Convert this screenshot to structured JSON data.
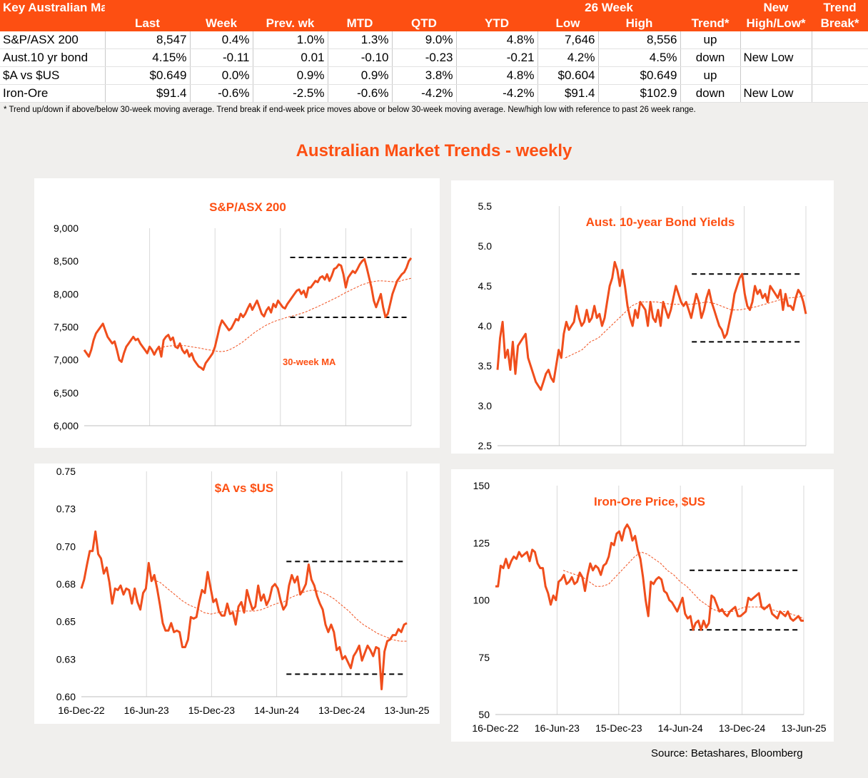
{
  "table": {
    "header_row1": [
      "Key Australian Markets",
      "",
      "",
      "",
      "",
      "",
      "",
      "26 Week",
      "",
      "",
      "New",
      "Trend"
    ],
    "header_row2": [
      "",
      "Last",
      "Week",
      "Prev. wk",
      "MTD",
      "QTD",
      "YTD",
      "Low",
      "High",
      "Trend*",
      "High/Low*",
      "Break*"
    ],
    "rows": [
      [
        "S&P/ASX 200",
        "8,547",
        "0.4%",
        "1.0%",
        "1.3%",
        "9.0%",
        "4.8%",
        "7,646",
        "8,556",
        "up",
        "",
        ""
      ],
      [
        "Aust.10 yr bond",
        "4.15%",
        "-0.11",
        "0.01",
        "-0.10",
        "-0.23",
        "-0.21",
        "4.2%",
        "4.5%",
        "down",
        "New Low",
        ""
      ],
      [
        "$A vs $US",
        "$0.649",
        "0.0%",
        "0.9%",
        "0.9%",
        "3.8%",
        "4.8%",
        "$0.604",
        "$0.649",
        "up",
        "",
        ""
      ],
      [
        "Iron-Ore",
        "$91.4",
        "-0.6%",
        "-2.5%",
        "-0.6%",
        "-4.2%",
        "-4.2%",
        "$91.4",
        "$102.9",
        "down",
        "New Low",
        ""
      ]
    ],
    "footnote": "*  Trend up/down if above/below 30-week moving average. Trend break if end-week price moves above or below 30-week moving average.  New/high low with reference to past 26 week range."
  },
  "main_title": "Australian Market Trends - weekly",
  "source": "Source:  Betashares, Bloomberg",
  "colors": {
    "accent": "#fd4f12",
    "line": "#f04e1c",
    "range": "#000000",
    "grid": "#d9d9d9"
  },
  "chart_data": [
    {
      "type": "line",
      "title": "S&P/ASX 200",
      "annotation": "30-week MA",
      "x_start": "16-Dec-22",
      "x_end": "13-Jun-25",
      "x_tick_labels": [],
      "ylim": [
        6000,
        9000
      ],
      "y_ticks": [
        6000,
        6500,
        7000,
        7500,
        8000,
        8500,
        9000
      ],
      "y_tick_labels": [
        "6,000",
        "6,500",
        "7,000",
        "7,500",
        "8,000",
        "8,500",
        "9,000"
      ],
      "range_high": 8556,
      "range_low": 7646,
      "series": [
        {
          "role": "price",
          "values": [
            7150,
            7100,
            7050,
            7150,
            7300,
            7400,
            7450,
            7500,
            7550,
            7450,
            7350,
            7300,
            7250,
            7280,
            7150,
            7000,
            6970,
            7100,
            7200,
            7250,
            7300,
            7350,
            7300,
            7320,
            7250,
            7200,
            7150,
            7100,
            7200,
            7150,
            7080,
            7150,
            7200,
            7050,
            7300,
            7350,
            7380,
            7300,
            7340,
            7200,
            7180,
            7250,
            7150,
            7100,
            7150,
            7050,
            7100,
            7000,
            6950,
            6900,
            6880,
            6850,
            6950,
            7000,
            7050,
            7100,
            7200,
            7350,
            7500,
            7600,
            7550,
            7500,
            7450,
            7480,
            7550,
            7620,
            7600,
            7700,
            7650,
            7700,
            7780,
            7850,
            7760,
            7830,
            7900,
            7800,
            7700,
            7660,
            7750,
            7800,
            7720,
            7850,
            7800,
            7900,
            7850,
            7800,
            7780,
            7850,
            7900,
            7950,
            8000,
            8050,
            8070,
            8000,
            8050,
            7950,
            8100,
            8100,
            8150,
            8200,
            8180,
            8250,
            8270,
            8220,
            8300,
            8200,
            8280,
            8380,
            8400,
            8450,
            8430,
            8300,
            8100,
            8250,
            8300,
            8350,
            8320,
            8380,
            8450,
            8500,
            8530,
            8400,
            8250,
            8100,
            7900,
            7800,
            7900,
            8000,
            7800,
            7650,
            7700,
            7850,
            8000,
            8100,
            8200,
            8250,
            8300,
            8330,
            8400,
            8500,
            8547
          ]
        },
        {
          "role": "30-week MA",
          "dashed": true,
          "values": [
            7150,
            7175,
            7200,
            7210,
            7215,
            7220,
            7220,
            7215,
            7205,
            7195,
            7185,
            7175,
            7160,
            7150,
            7140,
            7130,
            7125,
            7135,
            7160,
            7190,
            7230,
            7270,
            7320,
            7370,
            7420,
            7460,
            7500,
            7535,
            7565,
            7590,
            7610,
            7630,
            7650,
            7665,
            7680,
            7700,
            7720,
            7745,
            7775,
            7800,
            7830,
            7860,
            7890,
            7920,
            7950,
            7985,
            8020,
            8050,
            8080,
            8110,
            8140,
            8160,
            8180,
            8190,
            8200,
            8200,
            8195,
            8190,
            8185,
            8190,
            8210,
            8225,
            8240
          ]
        }
      ]
    },
    {
      "type": "line",
      "title": "Aust. 10-year Bond Yields",
      "x_start": "16-Dec-22",
      "x_end": "13-Jun-25",
      "x_tick_labels": [],
      "ylim": [
        2.5,
        5.5
      ],
      "y_ticks": [
        2.5,
        3.0,
        3.5,
        4.0,
        4.5,
        5.0,
        5.5
      ],
      "y_tick_labels": [
        "2.5",
        "3.0",
        "3.5",
        "4.0",
        "4.5",
        "5.0",
        "5.5"
      ],
      "range_high": 4.65,
      "range_low": 3.8,
      "series": [
        {
          "role": "price",
          "values": [
            3.45,
            3.85,
            4.05,
            3.6,
            3.7,
            3.45,
            3.8,
            3.4,
            3.75,
            3.8,
            3.85,
            3.9,
            3.6,
            3.5,
            3.4,
            3.3,
            3.25,
            3.2,
            3.3,
            3.4,
            3.45,
            3.35,
            3.3,
            3.5,
            3.7,
            3.6,
            3.9,
            4.05,
            3.95,
            4.0,
            4.05,
            4.25,
            4.1,
            4.0,
            4.05,
            4.2,
            4.05,
            4.1,
            4.25,
            4.1,
            4.15,
            4.0,
            4.1,
            4.3,
            4.5,
            4.6,
            4.8,
            4.7,
            4.5,
            4.7,
            4.5,
            4.25,
            4.1,
            4.0,
            4.2,
            4.1,
            4.3,
            4.25,
            4.2,
            4.0,
            4.3,
            4.1,
            4.05,
            4.2,
            4.0,
            4.3,
            4.2,
            4.1,
            4.2,
            4.35,
            4.5,
            4.4,
            4.3,
            4.25,
            4.3,
            4.2,
            4.1,
            4.25,
            4.4,
            4.3,
            4.1,
            4.2,
            4.35,
            4.45,
            4.3,
            4.2,
            4.1,
            4.0,
            3.95,
            3.85,
            3.9,
            4.05,
            4.2,
            4.4,
            4.5,
            4.6,
            4.65,
            4.4,
            4.25,
            4.2,
            4.3,
            4.5,
            4.4,
            4.45,
            4.35,
            4.4,
            4.3,
            4.5,
            4.45,
            4.4,
            4.35,
            4.45,
            4.2,
            4.4,
            4.25,
            4.25,
            4.2,
            4.35,
            4.45,
            4.4,
            4.3,
            4.15
          ]
        },
        {
          "role": "30-week MA",
          "dashed": true,
          "values": [
            3.6,
            3.65,
            3.7,
            3.8,
            3.85,
            3.95,
            4.05,
            4.15,
            4.25,
            4.3,
            4.3,
            4.3,
            4.28,
            4.27,
            4.27,
            4.27,
            4.28,
            4.3,
            4.28,
            4.24,
            4.2,
            4.2,
            4.22,
            4.24,
            4.27,
            4.3,
            4.33,
            4.35,
            4.36,
            4.38
          ]
        }
      ]
    },
    {
      "type": "line",
      "title": "$A vs $US",
      "x_start": "16-Dec-22",
      "x_end": "13-Jun-25",
      "x_tick_labels": [
        "16-Dec-22",
        "16-Jun-23",
        "15-Dec-23",
        "14-Jun-24",
        "13-Dec-24",
        "13-Jun-25"
      ],
      "ylim": [
        0.6,
        0.75
      ],
      "y_ticks": [
        0.6,
        0.625,
        0.65,
        0.675,
        0.7,
        0.725,
        0.75
      ],
      "y_tick_labels": [
        "0.60",
        "0.63",
        "0.65",
        "0.68",
        "0.70",
        "0.73",
        "0.75"
      ],
      "range_high": 0.69,
      "range_low": 0.615,
      "series": [
        {
          "role": "price",
          "values": [
            0.672,
            0.678,
            0.688,
            0.697,
            0.697,
            0.71,
            0.695,
            0.692,
            0.682,
            0.686,
            0.676,
            0.662,
            0.672,
            0.671,
            0.674,
            0.668,
            0.672,
            0.671,
            0.662,
            0.672,
            0.663,
            0.658,
            0.669,
            0.672,
            0.689,
            0.677,
            0.681,
            0.672,
            0.661,
            0.649,
            0.644,
            0.644,
            0.649,
            0.643,
            0.644,
            0.643,
            0.633,
            0.633,
            0.638,
            0.653,
            0.652,
            0.653,
            0.663,
            0.671,
            0.669,
            0.683,
            0.673,
            0.663,
            0.665,
            0.657,
            0.654,
            0.654,
            0.662,
            0.655,
            0.656,
            0.648,
            0.66,
            0.663,
            0.656,
            0.671,
            0.664,
            0.658,
            0.66,
            0.674,
            0.664,
            0.668,
            0.661,
            0.665,
            0.673,
            0.675,
            0.672,
            0.664,
            0.658,
            0.661,
            0.674,
            0.681,
            0.676,
            0.68,
            0.668,
            0.671,
            0.675,
            0.688,
            0.678,
            0.674,
            0.667,
            0.662,
            0.658,
            0.648,
            0.643,
            0.648,
            0.643,
            0.631,
            0.633,
            0.625,
            0.627,
            0.623,
            0.619,
            0.627,
            0.63,
            0.634,
            0.624,
            0.629,
            0.634,
            0.631,
            0.627,
            0.633,
            0.632,
            0.605,
            0.63,
            0.637,
            0.638,
            0.641,
            0.641,
            0.645,
            0.643,
            0.648,
            0.649
          ]
        },
        {
          "role": "30-week MA",
          "dashed": true,
          "values": [
            0.678,
            0.676,
            0.672,
            0.668,
            0.664,
            0.661,
            0.659,
            0.656,
            0.655,
            0.656,
            0.657,
            0.657,
            0.657,
            0.657,
            0.657,
            0.658,
            0.66,
            0.662,
            0.663,
            0.666,
            0.668,
            0.67,
            0.671,
            0.67,
            0.668,
            0.665,
            0.661,
            0.657,
            0.652,
            0.648,
            0.645,
            0.642,
            0.64,
            0.638,
            0.637,
            0.637
          ]
        }
      ]
    },
    {
      "type": "line",
      "title": "Iron-Ore Price, $US",
      "x_start": "16-Dec-22",
      "x_end": "13-Jun-25",
      "x_tick_labels": [
        "16-Dec-22",
        "16-Jun-23",
        "15-Dec-23",
        "14-Jun-24",
        "13-Dec-24",
        "13-Jun-25"
      ],
      "ylim": [
        50,
        150
      ],
      "y_ticks": [
        50,
        75,
        100,
        125,
        150
      ],
      "y_tick_labels": [
        "50",
        "75",
        "100",
        "125",
        "150"
      ],
      "range_high": 113,
      "range_low": 87,
      "series": [
        {
          "role": "price",
          "values": [
            106,
            106,
            115,
            114,
            118,
            114,
            117,
            119,
            118,
            121,
            119,
            120,
            121,
            117,
            122,
            121,
            116,
            114,
            114,
            106,
            103,
            98,
            102,
            100,
            108,
            109,
            111,
            107,
            108,
            110,
            107,
            108,
            112,
            110,
            104,
            111,
            116,
            113,
            115,
            114,
            111,
            115,
            116,
            119,
            125,
            124,
            129,
            130,
            126,
            131,
            133,
            131,
            126,
            128,
            122,
            118,
            110,
            100,
            93,
            108,
            107,
            109,
            110,
            109,
            104,
            103,
            100,
            99,
            97,
            95,
            98,
            101,
            94,
            92,
            93,
            87,
            90,
            91,
            87,
            91,
            88,
            90,
            102,
            101,
            98,
            95,
            96,
            94,
            93,
            95,
            96,
            97,
            93,
            93,
            94,
            95,
            101,
            100,
            101,
            102,
            103,
            97,
            96,
            97,
            98,
            94,
            93,
            92,
            95,
            94,
            93,
            95,
            92,
            91,
            92,
            93,
            91,
            91
          ]
        },
        {
          "role": "30-week MA",
          "dashed": true,
          "values": [
            113,
            112,
            111,
            110,
            108,
            106,
            106,
            107,
            110,
            113,
            116,
            119,
            121,
            120,
            118,
            116,
            113,
            111,
            108,
            106,
            103,
            100,
            98,
            96,
            95,
            95,
            95,
            96,
            97,
            97,
            97,
            97,
            96,
            95,
            95,
            94,
            93,
            92
          ]
        }
      ]
    }
  ]
}
